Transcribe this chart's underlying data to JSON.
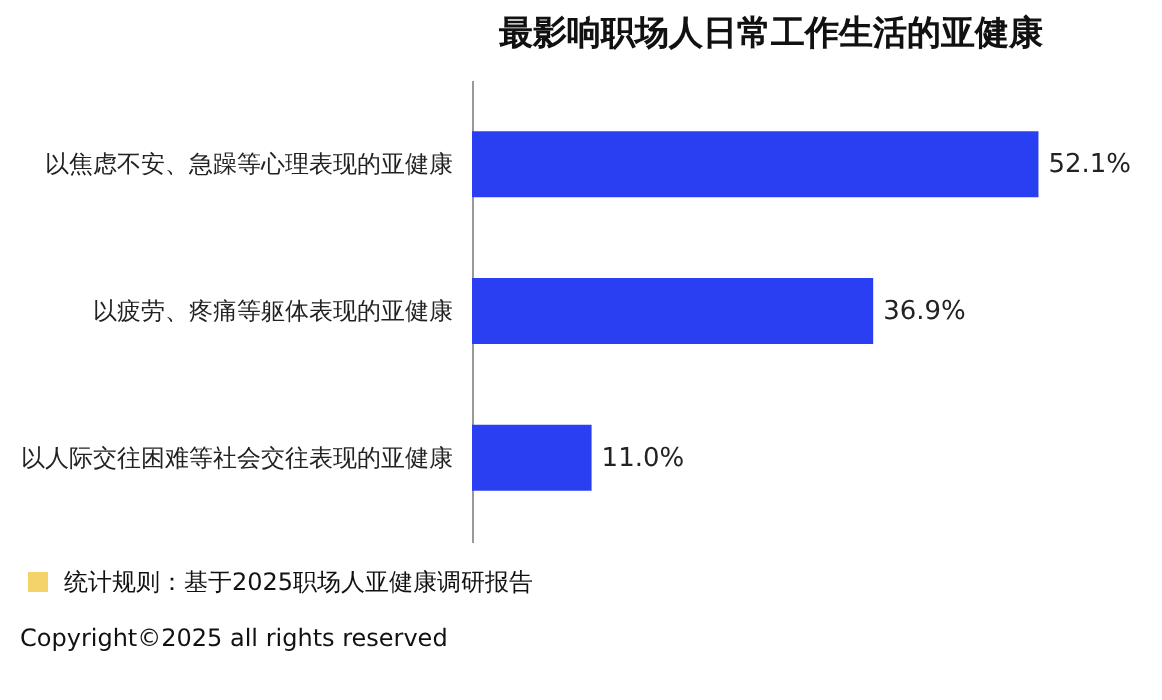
{
  "chart_data": {
    "type": "bar",
    "orientation": "horizontal",
    "title": "最影响职场人日常工作生活的亚健康",
    "categories": [
      "以焦虑不安、急躁等心理表现的亚健康",
      "以疲劳、疼痛等躯体表现的亚健康",
      "以人际交往困难等社会交往表现的亚健康"
    ],
    "values": [
      52.1,
      36.9,
      11.0
    ],
    "color": "#2b3ff2",
    "value_labels": [
      "52.1%",
      "36.9%",
      "11.0%"
    ],
    "annotations": [
      "统计规则：基于2025职场人亚健康调研报告",
      "Copyright©2025 all rights reserved"
    ]
  }
}
